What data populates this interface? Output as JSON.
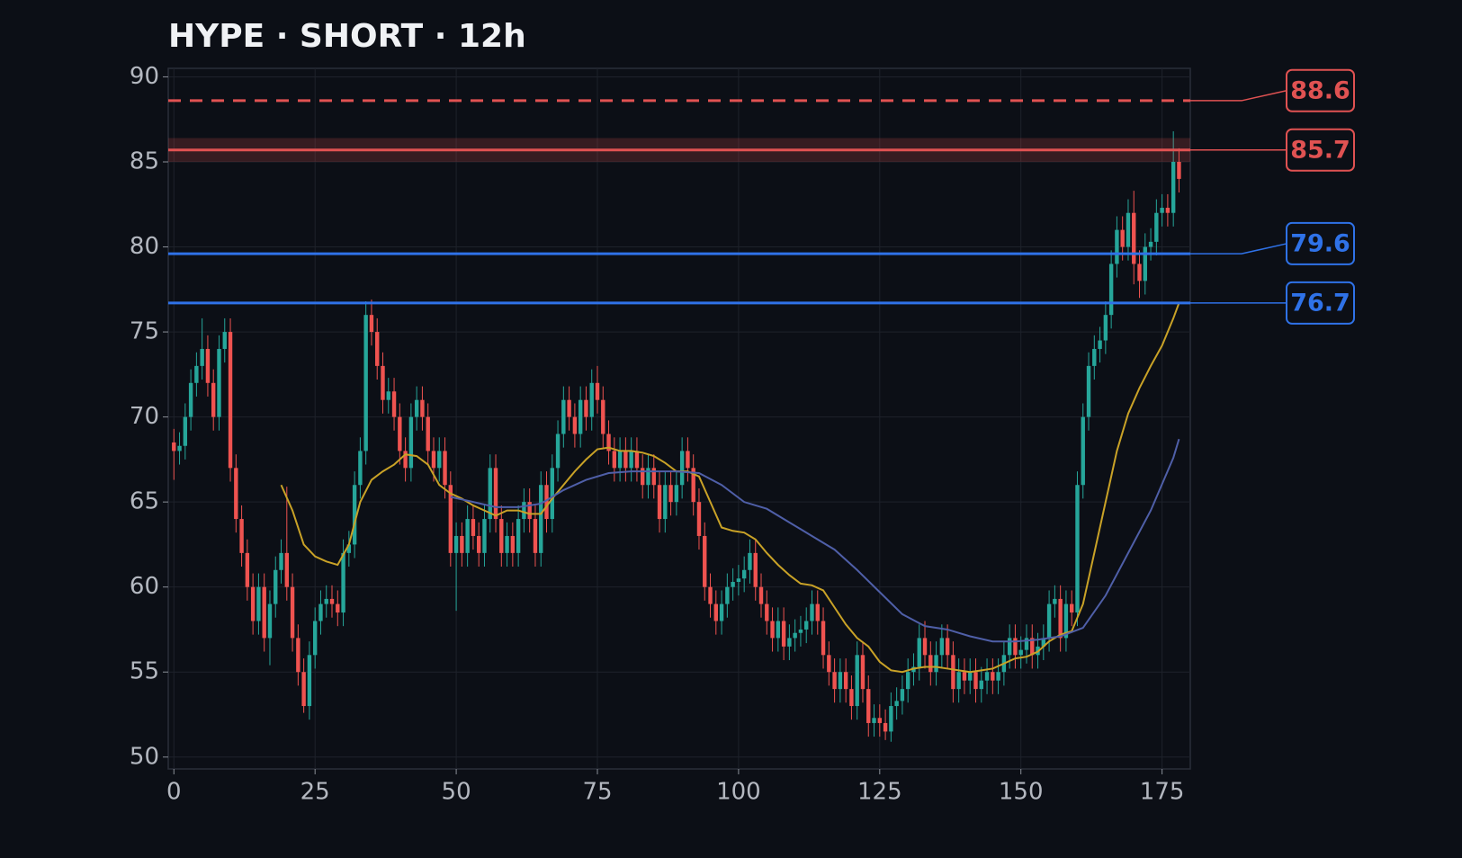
{
  "chart_data": {
    "type": "candlestick",
    "title": "HYPE · SHORT · 12h",
    "up_color": "#26a69a",
    "down_color": "#ef5350",
    "xlim": [
      -1,
      180
    ],
    "ylim": [
      49.3,
      90.5
    ],
    "xticks": [
      0,
      25,
      50,
      75,
      100,
      125,
      150,
      175
    ],
    "yticks": [
      50,
      55,
      60,
      65,
      70,
      75,
      80,
      85,
      90
    ],
    "grid": true,
    "x": [
      0,
      1,
      2,
      3,
      4,
      5,
      6,
      7,
      8,
      9,
      10,
      11,
      12,
      13,
      14,
      15,
      16,
      17,
      18,
      19,
      20,
      21,
      22,
      23,
      24,
      25,
      26,
      27,
      28,
      29,
      30,
      31,
      32,
      33,
      34,
      35,
      36,
      37,
      38,
      39,
      40,
      41,
      42,
      43,
      44,
      45,
      46,
      47,
      48,
      49,
      50,
      51,
      52,
      53,
      54,
      55,
      56,
      57,
      58,
      59,
      60,
      61,
      62,
      63,
      64,
      65,
      66,
      67,
      68,
      69,
      70,
      71,
      72,
      73,
      74,
      75,
      76,
      77,
      78,
      79,
      80,
      81,
      82,
      83,
      84,
      85,
      86,
      87,
      88,
      89,
      90,
      91,
      92,
      93,
      94,
      95,
      96,
      97,
      98,
      99,
      100,
      101,
      102,
      103,
      104,
      105,
      106,
      107,
      108,
      109,
      110,
      111,
      112,
      113,
      114,
      115,
      116,
      117,
      118,
      119,
      120,
      121,
      122,
      123,
      124,
      125,
      126,
      127,
      128,
      129,
      130,
      131,
      132,
      133,
      134,
      135,
      136,
      137,
      138,
      139,
      140,
      141,
      142,
      143,
      144,
      145,
      146,
      147,
      148,
      149,
      150,
      151,
      152,
      153,
      154,
      155,
      156,
      157,
      158,
      159,
      160,
      161,
      162,
      163,
      164,
      165,
      166,
      167,
      168,
      169,
      170,
      171,
      172,
      173,
      174,
      175,
      176,
      177,
      178
    ],
    "open": [
      68.5,
      68,
      68.3,
      70,
      72,
      73,
      74,
      72,
      70,
      74,
      75,
      67,
      64,
      62,
      60,
      58,
      60,
      57,
      59,
      61,
      62,
      60,
      57,
      55,
      53,
      56,
      58,
      59,
      59.3,
      59,
      58.5,
      62,
      62.5,
      66,
      68,
      76,
      75,
      73,
      71,
      71.5,
      70,
      68,
      67,
      70,
      71,
      70,
      68,
      67,
      68,
      66,
      62,
      63,
      62,
      64,
      63,
      62,
      64,
      67,
      64,
      62,
      63,
      62,
      64,
      65,
      64,
      62,
      66,
      64,
      67,
      69,
      71,
      70,
      69,
      71,
      70,
      72,
      71,
      69,
      68,
      67,
      68,
      67,
      68,
      67,
      66,
      67,
      66,
      64,
      66,
      65,
      66,
      68,
      67,
      65,
      63,
      60,
      59,
      58,
      59,
      60,
      60.3,
      60.5,
      61,
      62,
      60,
      59,
      58,
      57,
      58,
      56.5,
      57,
      57.3,
      57.5,
      58,
      59,
      58,
      56,
      55,
      54,
      55,
      54,
      53,
      56,
      54,
      52,
      52.3,
      52,
      51.5,
      53,
      53.3,
      54,
      55,
      55.3,
      57,
      56,
      55,
      56,
      57,
      56,
      54,
      55,
      54.5,
      55,
      54,
      54.5,
      55,
      54.5,
      55,
      56,
      57,
      56,
      56.3,
      57,
      56,
      56.5,
      57,
      59,
      59.3,
      57,
      59,
      58.5,
      66,
      70,
      73,
      74,
      74.5,
      76,
      79,
      81,
      80,
      82,
      79,
      78,
      80,
      80.3,
      82,
      82.3,
      82,
      85
    ],
    "high": [
      69.3,
      69.1,
      70.8,
      72.8,
      73.8,
      75.8,
      74.8,
      72.8,
      74.8,
      75.8,
      75.8,
      67.8,
      64.8,
      62.8,
      60.8,
      60.8,
      60.8,
      59.8,
      61.8,
      62.8,
      65.9,
      60.8,
      57.8,
      55.8,
      56.8,
      58.8,
      59.8,
      60.1,
      60.1,
      59.8,
      62.8,
      63.3,
      66.8,
      68.8,
      76.8,
      76.9,
      75.8,
      73.8,
      72.3,
      72.3,
      70.8,
      68.8,
      70.8,
      71.8,
      71.8,
      70.8,
      68.8,
      68.8,
      68.8,
      66.8,
      63.8,
      63.8,
      64.8,
      64.8,
      63.8,
      64.8,
      67.8,
      67.8,
      64.8,
      63.8,
      63.8,
      64.8,
      65.8,
      65.8,
      64.8,
      66.8,
      66.8,
      67.8,
      69.8,
      71.8,
      71.8,
      70.8,
      71.8,
      71.8,
      72.8,
      73,
      71.8,
      69.8,
      68.8,
      68.8,
      68.8,
      68.8,
      68.8,
      67.8,
      67.8,
      67.8,
      66.8,
      66.8,
      66.8,
      66.8,
      68.8,
      68.8,
      67.8,
      65.8,
      63.8,
      60.8,
      59.8,
      59.8,
      60.8,
      61.1,
      61.3,
      61.8,
      62.8,
      62.8,
      60.8,
      59.8,
      58.8,
      58.8,
      58.8,
      57.8,
      58.1,
      58.3,
      58.8,
      59.8,
      59.8,
      58.8,
      56.8,
      55.8,
      55.8,
      55.8,
      54.8,
      56.8,
      56.8,
      54.8,
      53.1,
      53.1,
      52.8,
      53.8,
      54.1,
      54.8,
      55.8,
      56.1,
      57.8,
      58,
      56.8,
      56.8,
      57.8,
      57.8,
      56.8,
      55.8,
      55.8,
      55.8,
      55.8,
      55.3,
      55.8,
      55.8,
      55.8,
      56.8,
      57.8,
      57.8,
      57.1,
      57.8,
      57.8,
      57.3,
      57.8,
      59.8,
      60.1,
      60.1,
      59.8,
      59.8,
      66.8,
      70.8,
      73.8,
      74.8,
      75.3,
      76.8,
      79.8,
      81.8,
      81.8,
      82.8,
      83.3,
      79.8,
      80.8,
      81.1,
      82.8,
      83.1,
      83.1,
      86.8,
      85.8
    ],
    "low": [
      66.3,
      67.2,
      67.5,
      69.2,
      71.2,
      72.2,
      71.2,
      69.2,
      69.2,
      73.2,
      66.2,
      63.2,
      61.2,
      59.2,
      57.2,
      57.2,
      56.2,
      55.4,
      58.2,
      60.2,
      59.2,
      56.2,
      54.2,
      52.6,
      52.2,
      55.2,
      57.2,
      58.2,
      58.2,
      57.7,
      57.7,
      61.2,
      61.7,
      65.2,
      67.2,
      74.2,
      72.2,
      70.2,
      70.2,
      69.2,
      67.2,
      66.2,
      66.2,
      69.2,
      69.2,
      67.2,
      66.2,
      66.2,
      65.2,
      61.2,
      58.6,
      61.2,
      61.2,
      62.2,
      61.2,
      61.2,
      63.2,
      63.2,
      61.2,
      61.2,
      61.2,
      61.2,
      63.2,
      63.2,
      61.2,
      61.2,
      63.2,
      63.2,
      66.2,
      68.2,
      69.2,
      68.2,
      68.2,
      69.2,
      69.2,
      70.2,
      68.2,
      67.2,
      66.2,
      66.2,
      66.2,
      66.2,
      66.2,
      65.2,
      65.2,
      65.2,
      63.2,
      63.2,
      64.2,
      64.2,
      65.2,
      66.2,
      64.2,
      62.2,
      59.2,
      58.2,
      57.2,
      57.2,
      58.2,
      59.2,
      59.5,
      59.7,
      60.2,
      59.2,
      58.2,
      57.2,
      56.2,
      56.2,
      55.7,
      55.7,
      56.2,
      56.5,
      56.7,
      57.2,
      57.2,
      55.2,
      54.2,
      53.2,
      53.2,
      53.2,
      52.2,
      52.2,
      53.2,
      51.2,
      51.2,
      51.2,
      51.0,
      50.9,
      52.2,
      52.5,
      53.2,
      54.2,
      54.5,
      55.2,
      54.2,
      54.2,
      55.2,
      55.2,
      53.2,
      53.2,
      53.7,
      53.7,
      53.2,
      53.2,
      53.7,
      53.7,
      53.7,
      54.2,
      55.2,
      55.2,
      55.2,
      55.5,
      55.2,
      55.2,
      55.7,
      56.2,
      58.2,
      56.2,
      56.2,
      57.7,
      57.7,
      65.2,
      69.2,
      72.2,
      73.2,
      73.7,
      75.2,
      78.2,
      79.2,
      79.2,
      77.8,
      77.0,
      77.2,
      79.2,
      79.5,
      81.2,
      81.2,
      81.2,
      83.2
    ],
    "close": [
      68,
      68.3,
      70,
      72,
      73,
      74,
      72,
      70,
      74,
      75,
      67,
      64,
      62,
      60,
      58,
      60,
      57,
      59,
      61,
      62,
      60,
      57,
      55,
      53,
      56,
      58,
      59,
      59.3,
      59,
      58.5,
      62,
      62.5,
      66,
      68,
      76,
      75,
      73,
      71,
      71.5,
      70,
      68,
      67,
      70,
      71,
      70,
      68,
      67,
      68,
      66,
      62,
      63,
      62,
      64,
      63,
      62,
      64,
      67,
      64,
      62,
      63,
      62,
      64,
      65,
      64,
      62,
      66,
      64,
      67,
      69,
      71,
      70,
      69,
      71,
      70,
      72,
      71,
      69,
      68,
      67,
      68,
      67,
      68,
      67,
      66,
      67,
      66,
      64,
      66,
      65,
      66,
      68,
      67,
      65,
      63,
      60,
      59,
      58,
      59,
      60,
      60.3,
      60.5,
      61,
      62,
      60,
      59,
      58,
      57,
      58,
      56.5,
      57,
      57.3,
      57.5,
      58,
      59,
      58,
      56,
      55,
      54,
      55,
      54,
      53,
      56,
      54,
      52,
      52.3,
      52,
      51.5,
      53,
      53.3,
      54,
      55,
      55.3,
      57,
      56,
      55,
      56,
      57,
      56,
      54,
      55,
      54.5,
      55,
      54,
      54.5,
      55,
      54.5,
      55,
      56,
      57,
      56,
      56.3,
      57,
      56,
      56.5,
      57,
      59,
      59.3,
      57,
      59,
      58.5,
      66,
      70,
      73,
      74,
      74.5,
      76,
      79,
      81,
      80,
      82,
      79,
      78,
      80,
      80.3,
      82,
      82.3,
      82,
      85,
      84
    ],
    "series": [
      {
        "color": "#c9a227",
        "x": [
          19,
          21,
          23,
          25,
          27,
          29,
          31,
          33,
          35,
          37,
          39,
          41,
          43,
          45,
          47,
          49,
          51,
          53,
          55,
          57,
          59,
          61,
          63,
          65,
          67,
          69,
          71,
          73,
          75,
          77,
          79,
          81,
          83,
          85,
          87,
          89,
          91,
          93,
          95,
          97,
          99,
          101,
          103,
          105,
          107,
          109,
          111,
          113,
          115,
          117,
          119,
          121,
          123,
          125,
          127,
          129,
          131,
          133,
          135,
          137,
          139,
          141,
          143,
          145,
          147,
          149,
          151,
          153,
          155,
          157,
          159,
          161,
          163,
          165,
          167,
          169,
          171,
          173,
          175,
          177,
          178
        ],
        "values": [
          66,
          64.5,
          62.5,
          61.8,
          61.5,
          61.3,
          62.5,
          65,
          66.3,
          66.8,
          67.2,
          67.8,
          67.7,
          67.2,
          66,
          65.5,
          65.2,
          64.8,
          64.5,
          64.2,
          64.5,
          64.5,
          64.3,
          64.3,
          65.2,
          66,
          66.8,
          67.5,
          68.1,
          68.2,
          68,
          68,
          67.9,
          67.7,
          67.3,
          66.8,
          66.8,
          66.5,
          65,
          63.5,
          63.3,
          63.2,
          62.8,
          62,
          61.3,
          60.7,
          60.2,
          60.1,
          59.8,
          58.8,
          57.8,
          57,
          56.5,
          55.6,
          55.1,
          55,
          55.2,
          55.3,
          55.3,
          55.2,
          55.1,
          55,
          55.1,
          55.2,
          55.5,
          55.8,
          55.9,
          56.2,
          56.8,
          57.2,
          57.4,
          59,
          62,
          65,
          68,
          70.2,
          71.7,
          73,
          74.2,
          75.8,
          76.7
        ]
      },
      {
        "color": "#4f5fa8",
        "x": [
          49,
          53,
          57,
          61,
          65,
          69,
          73,
          77,
          81,
          85,
          89,
          93,
          97,
          101,
          105,
          109,
          113,
          117,
          121,
          125,
          129,
          133,
          137,
          141,
          145,
          149,
          153,
          157,
          161,
          165,
          169,
          173,
          177,
          178
        ],
        "values": [
          65.3,
          65,
          64.7,
          64.7,
          64.9,
          65.7,
          66.3,
          66.7,
          66.8,
          66.8,
          66.8,
          66.7,
          66,
          65,
          64.6,
          63.8,
          63,
          62.2,
          61,
          59.7,
          58.4,
          57.7,
          57.5,
          57.1,
          56.8,
          56.8,
          56.9,
          57.1,
          57.6,
          59.5,
          62,
          64.5,
          67.6,
          68.7
        ]
      }
    ],
    "levels": [
      {
        "value": 88.6,
        "color": "#e05252",
        "dashed": true
      },
      {
        "value": 85.7,
        "color": "#e05252",
        "band": [
          85.0,
          86.4
        ]
      },
      {
        "value": 79.6,
        "color": "#2f72e8"
      },
      {
        "value": 76.7,
        "color": "#2f72e8"
      }
    ]
  }
}
